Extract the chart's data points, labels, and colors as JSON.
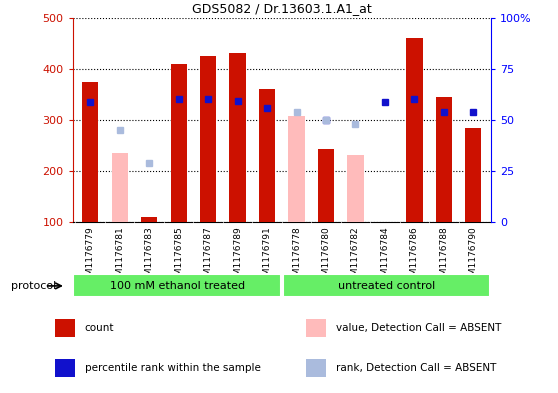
{
  "title": "GDS5082 / Dr.13603.1.A1_at",
  "samples": [
    "GSM1176779",
    "GSM1176781",
    "GSM1176783",
    "GSM1176785",
    "GSM1176787",
    "GSM1176789",
    "GSM1176791",
    "GSM1176778",
    "GSM1176780",
    "GSM1176782",
    "GSM1176784",
    "GSM1176786",
    "GSM1176788",
    "GSM1176790"
  ],
  "count_values": [
    375,
    null,
    110,
    410,
    425,
    430,
    360,
    null,
    243,
    null,
    null,
    460,
    345,
    285
  ],
  "count_absent": [
    null,
    235,
    null,
    null,
    null,
    null,
    null,
    308,
    null,
    232,
    null,
    null,
    null,
    null
  ],
  "rank_present": [
    335,
    null,
    null,
    340,
    340,
    337,
    323,
    null,
    300,
    null,
    334,
    340,
    315,
    315
  ],
  "rank_absent": [
    null,
    280,
    215,
    null,
    null,
    null,
    null,
    315,
    300,
    292,
    null,
    null,
    null,
    null
  ],
  "protocol_groups": [
    {
      "label": "100 mM ethanol treated",
      "start": 0,
      "end": 7
    },
    {
      "label": "untreated control",
      "start": 7,
      "end": 14
    }
  ],
  "ylim": [
    100,
    500
  ],
  "yticks_left": [
    100,
    200,
    300,
    400,
    500
  ],
  "y2ticks": [
    0,
    25,
    50,
    75,
    100
  ],
  "y2labels": [
    "0",
    "25",
    "50",
    "75",
    "100%"
  ],
  "y2lim": [
    0,
    100
  ],
  "color_count": "#cc1100",
  "color_rank": "#1111cc",
  "color_count_absent": "#ffbbbb",
  "color_rank_absent": "#aabbdd",
  "bg_protocol": "#66ee66",
  "legend_items": [
    {
      "label": "count",
      "color": "#cc1100"
    },
    {
      "label": "percentile rank within the sample",
      "color": "#1111cc"
    },
    {
      "label": "value, Detection Call = ABSENT",
      "color": "#ffbbbb"
    },
    {
      "label": "rank, Detection Call = ABSENT",
      "color": "#aabbdd"
    }
  ]
}
